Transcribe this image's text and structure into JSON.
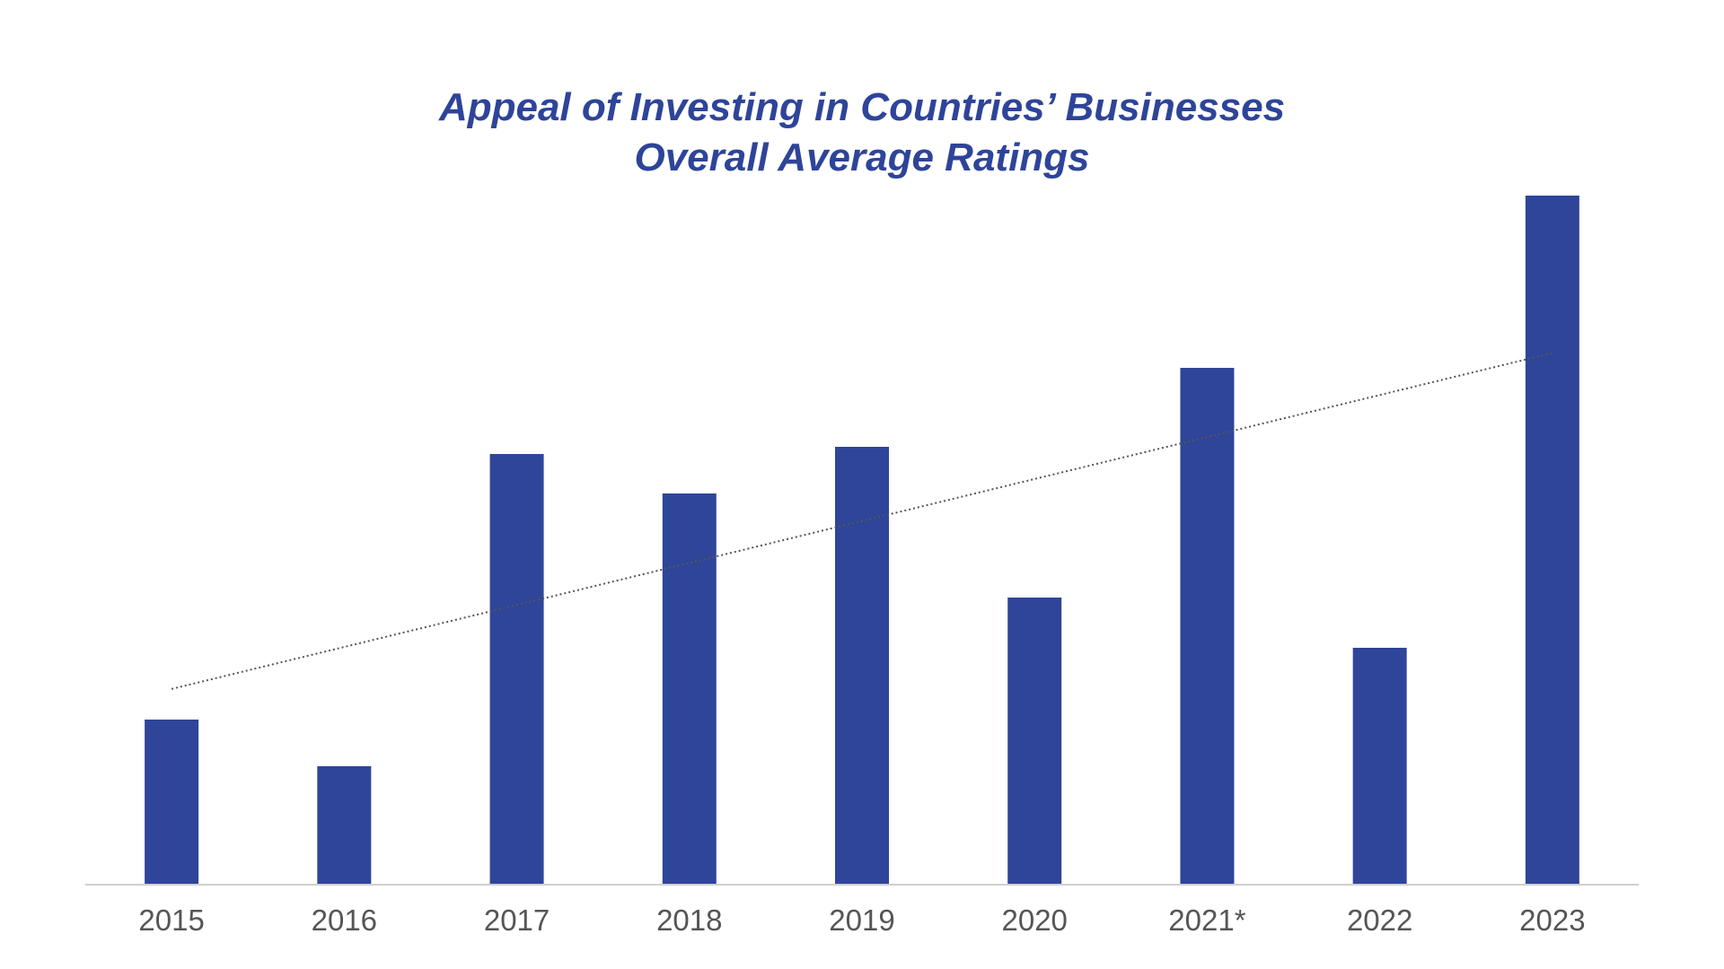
{
  "chart_data": {
    "type": "bar",
    "title": [
      "Appeal of Investing in Countries’ Businesses",
      "Overall Average Ratings"
    ],
    "categories": [
      "2015",
      "2016",
      "2017",
      "2018",
      "2019",
      "2020",
      "2021*",
      "2022",
      "2023"
    ],
    "values": [
      23,
      16.5,
      60,
      54.5,
      61,
      40,
      72,
      33,
      96
    ],
    "ylim": [
      0,
      100
    ],
    "xlabel": "",
    "ylabel": "",
    "grid": false,
    "legend": "none",
    "trendline": {
      "type": "linear",
      "style": "dotted"
    },
    "colors": {
      "bar": "#2E4599",
      "title": "#2E4499",
      "tick_label": "#555555",
      "axis": "#d0d0d0",
      "trendline": "#555555"
    }
  }
}
